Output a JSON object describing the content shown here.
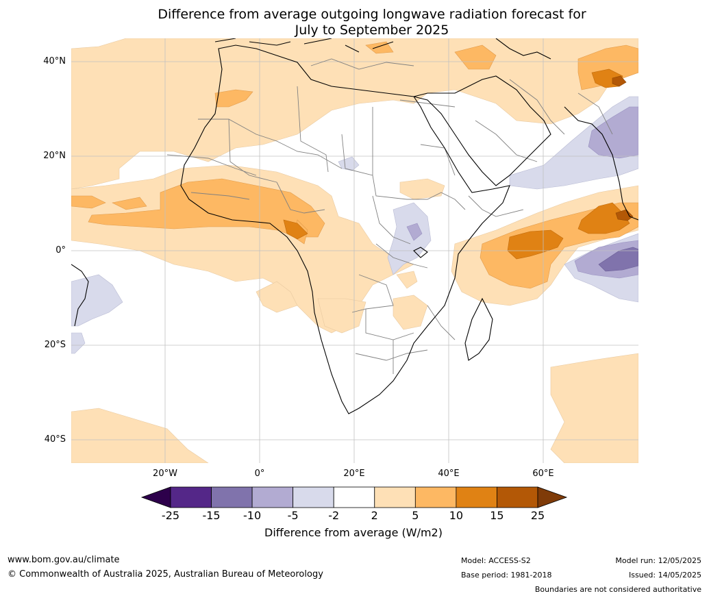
{
  "header": {
    "title_line1": "Difference from average outgoing longwave radiation forecast for",
    "title_line2": "July to September 2025"
  },
  "map": {
    "region": "Africa",
    "lat_labels": [
      "40°N",
      "20°N",
      "0°",
      "20°S",
      "40°S"
    ],
    "lon_labels": [
      "20°W",
      "0°",
      "20°E",
      "40°E",
      "60°E"
    ],
    "colors": {
      "ocean_neutral": "#ffffff",
      "pos_2_5": "#fee0b6",
      "pos_5_10": "#fdb863",
      "pos_10_15": "#e08214",
      "pos_15_25": "#b35806",
      "pos_over_25": "#7f3b08",
      "neg_2_5": "#d8daeb",
      "neg_5_10": "#b2abd2",
      "neg_10_15": "#8073ac",
      "neg_15_25": "#542788",
      "neg_over_25": "#2d004b",
      "coast": "#000000",
      "border": "#808080",
      "grid": "#c0c0c0"
    }
  },
  "colorbar": {
    "ticks": [
      "-25",
      "-15",
      "-10",
      "-5",
      "-2",
      "2",
      "5",
      "10",
      "15",
      "25"
    ],
    "segment_colors": [
      "#542788",
      "#8073ac",
      "#b2abd2",
      "#d8daeb",
      "#ffffff",
      "#fee0b6",
      "#fdb863",
      "#e08214",
      "#b35806"
    ],
    "low_extend_color": "#2d004b",
    "high_extend_color": "#7f3b08",
    "label": "Difference from average (W/m2)"
  },
  "footer": {
    "website": "www.bom.gov.au/climate",
    "copyright": "© Commonwealth of Australia 2025, Australian Bureau of Meteorology",
    "model": "Model: ACCESS-S2",
    "base_period": "Base period: 1981-2018",
    "model_run": "Model run: 12/05/2025",
    "issued": "Issued: 14/05/2025",
    "disclaimer": "Boundaries are not considered authoritative"
  }
}
